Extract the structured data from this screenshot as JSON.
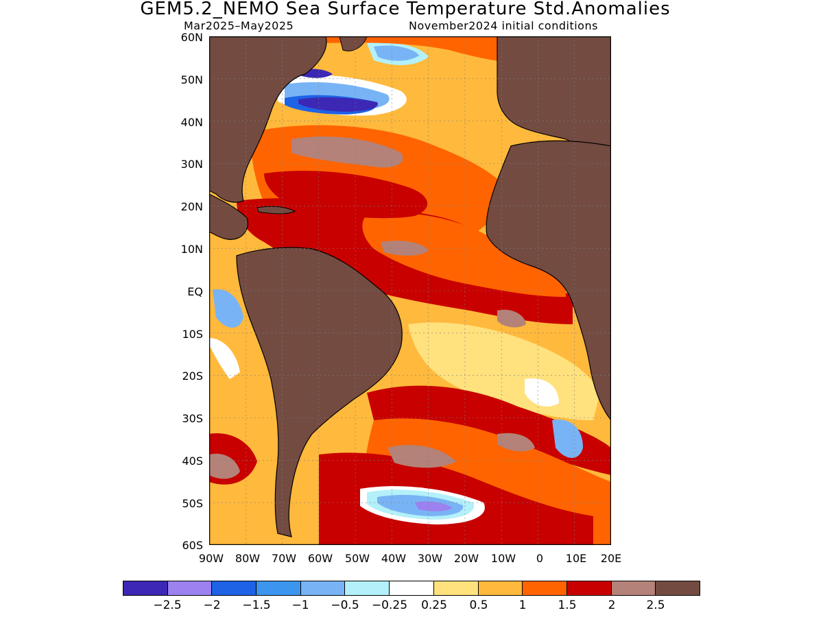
{
  "title": "GEM5.2_NEMO Sea Surface Temperature Std.Anomalies",
  "period": "Mar2025–May2025",
  "init_conditions": "November2024 initial conditions",
  "lat_labels": [
    "60N",
    "50N",
    "40N",
    "30N",
    "20N",
    "10N",
    "EQ",
    "10S",
    "20S",
    "30S",
    "40S",
    "50S",
    "60S"
  ],
  "lon_labels": [
    "90W",
    "80W",
    "70W",
    "60W",
    "50W",
    "40W",
    "30W",
    "20W",
    "10W",
    "0",
    "10E",
    "20E"
  ],
  "colorbar": {
    "colors": [
      "#3c28b4",
      "#9b82f0",
      "#1e62e6",
      "#3c96f0",
      "#78b4f5",
      "#b4f0fa",
      "#ffffff",
      "#ffe17d",
      "#ffb93c",
      "#ff6400",
      "#c80000",
      "#b48278",
      "#734b41"
    ],
    "labels": [
      "−2.5",
      "−2",
      "−1.5",
      "−1",
      "−0.5",
      "−0.25",
      "0.25",
      "0.5",
      "1",
      "1.5",
      "2",
      "2.5"
    ]
  },
  "map": {
    "land_color": "#734b41",
    "extent": {
      "lon_min": -90,
      "lon_max": 20,
      "lat_min": -60,
      "lat_max": 60
    }
  }
}
